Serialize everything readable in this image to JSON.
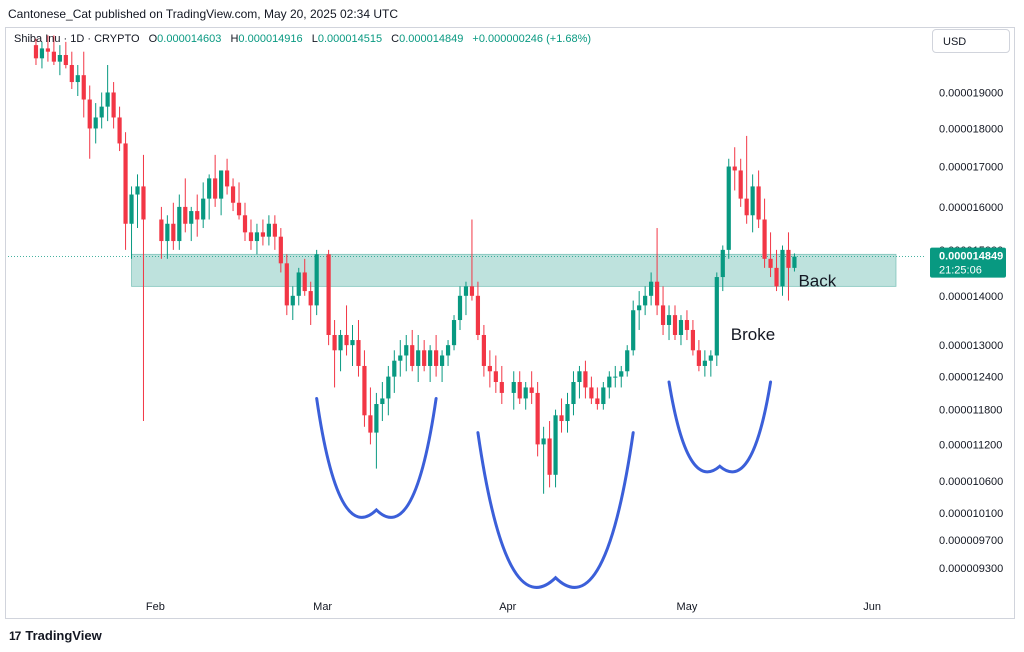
{
  "header": {
    "published": "Cantonese_Cat published on TradingView.com, May 20, 2025 02:34 UTC"
  },
  "legend": {
    "symbol": "Shiba Inu · 1D · CRYPTO",
    "o_label": "O",
    "o_value": "0.000014603",
    "h_label": "H",
    "h_value": "0.000014916",
    "l_label": "L",
    "l_value": "0.000014515",
    "c_label": "C",
    "c_value": "0.000014849",
    "change": "+0.000000246 (+1.68%)"
  },
  "currency_button": "USD",
  "footer": {
    "brand": "TradingView",
    "logo_glyph": "17"
  },
  "price_tag": {
    "price": "0.000014849",
    "countdown": "21:25:06"
  },
  "annotations": {
    "broke": "Broke",
    "back": "Back"
  },
  "colors": {
    "up": "#089981",
    "down": "#f23645",
    "zone": "#a8d8d2",
    "curve": "#3b5fd9",
    "axis_text": "#131722"
  },
  "chart_data": {
    "type": "candlestick",
    "title": "",
    "xlabel": "",
    "ylabel": "",
    "scale": "log",
    "ylim": [
      9e-06,
      2.01e-05
    ],
    "y_ticks": [
      {
        "value": 1.9e-05,
        "label": "0.000019000"
      },
      {
        "value": 1.8e-05,
        "label": "0.000018000"
      },
      {
        "value": 1.7e-05,
        "label": "0.000017000"
      },
      {
        "value": 1.6e-05,
        "label": "0.000016000"
      },
      {
        "value": 1.5e-05,
        "label": "0.000015000"
      },
      {
        "value": 1.4e-05,
        "label": "0.000014000"
      },
      {
        "value": 1.3e-05,
        "label": "0.000013000"
      },
      {
        "value": 1.24e-05,
        "label": "0.000012400"
      },
      {
        "value": 1.18e-05,
        "label": "0.000011800"
      },
      {
        "value": 1.12e-05,
        "label": "0.000011200"
      },
      {
        "value": 1.06e-05,
        "label": "0.000010600"
      },
      {
        "value": 1.01e-05,
        "label": "0.000010100"
      },
      {
        "value": 9.7e-06,
        "label": "0.000009700"
      },
      {
        "value": 9.3e-06,
        "label": "0.000009300"
      }
    ],
    "x_ticks": [
      {
        "date": "2025-02-01",
        "label": "Feb"
      },
      {
        "date": "2025-03-01",
        "label": "Mar"
      },
      {
        "date": "2025-04-01",
        "label": "Apr"
      },
      {
        "date": "2025-05-01",
        "label": "May"
      },
      {
        "date": "2025-06-01",
        "label": "Jun"
      }
    ],
    "x_range": [
      "2025-01-11",
      "2025-06-04"
    ],
    "last_price": 1.4849e-05,
    "zone": {
      "from": "2025-01-28",
      "to": "2025-06-05",
      "low": 1.42e-05,
      "high": 1.49e-05
    },
    "curves": [
      {
        "from": "2025-02-28",
        "to": "2025-03-20",
        "top": 1.2e-05,
        "bottom": 1.06e-05
      },
      {
        "from": "2025-03-27",
        "to": "2025-04-22",
        "top": 1.14e-05,
        "bottom": 9.7e-06
      },
      {
        "from": "2025-04-28",
        "to": "2025-05-15",
        "top": 1.23e-05,
        "bottom": 1.12e-05
      }
    ],
    "candles": [
      {
        "date": "2025-01-12",
        "o": 20.4,
        "h": 20.6,
        "l": 19.8,
        "c": 20.0
      },
      {
        "date": "2025-01-13",
        "o": 20.0,
        "h": 20.5,
        "l": 19.7,
        "c": 20.3
      },
      {
        "date": "2025-01-14",
        "o": 20.3,
        "h": 20.7,
        "l": 19.9,
        "c": 20.2
      },
      {
        "date": "2025-01-15",
        "o": 20.2,
        "h": 20.7,
        "l": 19.8,
        "c": 19.9
      },
      {
        "date": "2025-01-16",
        "o": 19.9,
        "h": 20.4,
        "l": 19.5,
        "c": 20.1
      },
      {
        "date": "2025-01-17",
        "o": 20.1,
        "h": 20.5,
        "l": 19.7,
        "c": 19.8
      },
      {
        "date": "2025-01-18",
        "o": 19.8,
        "h": 20.2,
        "l": 19.1,
        "c": 19.3
      },
      {
        "date": "2025-01-19",
        "o": 19.3,
        "h": 19.8,
        "l": 18.9,
        "c": 19.5
      },
      {
        "date": "2025-01-20",
        "o": 19.5,
        "h": 20.2,
        "l": 18.3,
        "c": 18.8
      },
      {
        "date": "2025-01-21",
        "o": 18.8,
        "h": 19.2,
        "l": 17.2,
        "c": 18.0
      },
      {
        "date": "2025-01-22",
        "o": 18.0,
        "h": 18.7,
        "l": 17.6,
        "c": 18.3
      },
      {
        "date": "2025-01-23",
        "o": 18.3,
        "h": 19.0,
        "l": 18.0,
        "c": 18.6
      },
      {
        "date": "2025-01-24",
        "o": 18.6,
        "h": 19.8,
        "l": 18.2,
        "c": 19.0
      },
      {
        "date": "2025-01-25",
        "o": 19.0,
        "h": 19.3,
        "l": 18.0,
        "c": 18.3
      },
      {
        "date": "2025-01-26",
        "o": 18.3,
        "h": 18.6,
        "l": 17.4,
        "c": 17.6
      },
      {
        "date": "2025-01-27",
        "o": 17.6,
        "h": 17.9,
        "l": 15.0,
        "c": 15.6
      },
      {
        "date": "2025-01-28",
        "o": 15.6,
        "h": 16.5,
        "l": 14.8,
        "c": 16.3
      },
      {
        "date": "2025-01-29",
        "o": 16.3,
        "h": 16.8,
        "l": 15.5,
        "c": 16.5
      },
      {
        "date": "2025-01-30",
        "o": 16.5,
        "h": 17.3,
        "l": 11.6,
        "c": 15.7
      },
      {
        "date": "2025-02-02",
        "o": 15.7,
        "h": 16.0,
        "l": 14.8,
        "c": 15.2
      },
      {
        "date": "2025-02-03",
        "o": 15.2,
        "h": 15.8,
        "l": 14.8,
        "c": 15.6
      },
      {
        "date": "2025-02-04",
        "o": 15.6,
        "h": 16.1,
        "l": 15.0,
        "c": 15.2
      },
      {
        "date": "2025-02-05",
        "o": 15.2,
        "h": 16.3,
        "l": 15.0,
        "c": 16.0
      },
      {
        "date": "2025-02-06",
        "o": 16.0,
        "h": 16.7,
        "l": 15.4,
        "c": 15.6
      },
      {
        "date": "2025-02-07",
        "o": 15.6,
        "h": 16.0,
        "l": 15.2,
        "c": 15.9
      },
      {
        "date": "2025-02-08",
        "o": 15.9,
        "h": 16.3,
        "l": 15.3,
        "c": 15.7
      },
      {
        "date": "2025-02-09",
        "o": 15.7,
        "h": 16.6,
        "l": 15.5,
        "c": 16.2
      },
      {
        "date": "2025-02-10",
        "o": 16.2,
        "h": 16.8,
        "l": 15.7,
        "c": 16.7
      },
      {
        "date": "2025-02-11",
        "o": 16.7,
        "h": 17.3,
        "l": 16.0,
        "c": 16.2
      },
      {
        "date": "2025-02-12",
        "o": 16.2,
        "h": 16.9,
        "l": 15.8,
        "c": 16.9
      },
      {
        "date": "2025-02-13",
        "o": 16.9,
        "h": 17.2,
        "l": 16.3,
        "c": 16.5
      },
      {
        "date": "2025-02-14",
        "o": 16.5,
        "h": 16.7,
        "l": 15.9,
        "c": 16.1
      },
      {
        "date": "2025-02-15",
        "o": 16.1,
        "h": 16.6,
        "l": 15.7,
        "c": 15.8
      },
      {
        "date": "2025-02-16",
        "o": 15.8,
        "h": 16.1,
        "l": 15.2,
        "c": 15.4
      },
      {
        "date": "2025-02-17",
        "o": 15.4,
        "h": 15.7,
        "l": 15.0,
        "c": 15.2
      },
      {
        "date": "2025-02-18",
        "o": 15.2,
        "h": 15.6,
        "l": 14.9,
        "c": 15.4
      },
      {
        "date": "2025-02-19",
        "o": 15.4,
        "h": 15.7,
        "l": 15.1,
        "c": 15.3
      },
      {
        "date": "2025-02-20",
        "o": 15.3,
        "h": 15.8,
        "l": 15.1,
        "c": 15.6
      },
      {
        "date": "2025-02-21",
        "o": 15.6,
        "h": 15.8,
        "l": 15.0,
        "c": 15.3
      },
      {
        "date": "2025-02-22",
        "o": 15.3,
        "h": 15.5,
        "l": 14.5,
        "c": 14.7
      },
      {
        "date": "2025-02-23",
        "o": 14.7,
        "h": 14.9,
        "l": 13.6,
        "c": 13.8
      },
      {
        "date": "2025-02-24",
        "o": 13.8,
        "h": 14.2,
        "l": 13.5,
        "c": 14.0
      },
      {
        "date": "2025-02-25",
        "o": 14.0,
        "h": 14.6,
        "l": 13.8,
        "c": 14.5
      },
      {
        "date": "2025-02-26",
        "o": 14.5,
        "h": 14.8,
        "l": 14.0,
        "c": 14.1
      },
      {
        "date": "2025-02-27",
        "o": 14.1,
        "h": 14.3,
        "l": 13.4,
        "c": 13.8
      },
      {
        "date": "2025-02-28",
        "o": 13.8,
        "h": 15.0,
        "l": 13.6,
        "c": 14.9
      },
      {
        "date": "2025-03-02",
        "o": 14.9,
        "h": 15.0,
        "l": 13.0,
        "c": 13.2
      },
      {
        "date": "2025-03-03",
        "o": 13.2,
        "h": 13.5,
        "l": 12.2,
        "c": 12.9
      },
      {
        "date": "2025-03-04",
        "o": 12.9,
        "h": 13.3,
        "l": 12.5,
        "c": 13.2
      },
      {
        "date": "2025-03-05",
        "o": 13.2,
        "h": 13.8,
        "l": 12.8,
        "c": 13.0
      },
      {
        "date": "2025-03-06",
        "o": 13.0,
        "h": 13.4,
        "l": 12.6,
        "c": 13.1
      },
      {
        "date": "2025-03-07",
        "o": 13.1,
        "h": 13.5,
        "l": 12.4,
        "c": 12.6
      },
      {
        "date": "2025-03-08",
        "o": 12.6,
        "h": 12.9,
        "l": 11.5,
        "c": 11.7
      },
      {
        "date": "2025-03-09",
        "o": 11.7,
        "h": 12.2,
        "l": 11.2,
        "c": 11.4
      },
      {
        "date": "2025-03-10",
        "o": 11.4,
        "h": 12.1,
        "l": 10.8,
        "c": 11.9
      },
      {
        "date": "2025-03-11",
        "o": 11.9,
        "h": 12.3,
        "l": 11.6,
        "c": 12.0
      },
      {
        "date": "2025-03-12",
        "o": 12.0,
        "h": 12.6,
        "l": 11.7,
        "c": 12.4
      },
      {
        "date": "2025-03-13",
        "o": 12.4,
        "h": 12.9,
        "l": 12.1,
        "c": 12.7
      },
      {
        "date": "2025-03-14",
        "o": 12.7,
        "h": 13.1,
        "l": 12.4,
        "c": 12.8
      },
      {
        "date": "2025-03-15",
        "o": 12.8,
        "h": 13.2,
        "l": 12.5,
        "c": 13.0
      },
      {
        "date": "2025-03-16",
        "o": 13.0,
        "h": 13.3,
        "l": 12.5,
        "c": 12.6
      },
      {
        "date": "2025-03-17",
        "o": 12.6,
        "h": 13.2,
        "l": 12.3,
        "c": 12.9
      },
      {
        "date": "2025-03-18",
        "o": 12.9,
        "h": 13.1,
        "l": 12.5,
        "c": 12.6
      },
      {
        "date": "2025-03-19",
        "o": 12.6,
        "h": 13.0,
        "l": 12.3,
        "c": 12.9
      },
      {
        "date": "2025-03-20",
        "o": 12.9,
        "h": 13.2,
        "l": 12.4,
        "c": 12.6
      },
      {
        "date": "2025-03-21",
        "o": 12.6,
        "h": 12.9,
        "l": 12.3,
        "c": 12.8
      },
      {
        "date": "2025-03-22",
        "o": 12.8,
        "h": 13.1,
        "l": 12.6,
        "c": 13.0
      },
      {
        "date": "2025-03-23",
        "o": 13.0,
        "h": 13.6,
        "l": 12.9,
        "c": 13.5
      },
      {
        "date": "2025-03-24",
        "o": 13.5,
        "h": 14.2,
        "l": 13.3,
        "c": 14.0
      },
      {
        "date": "2025-03-25",
        "o": 14.0,
        "h": 14.3,
        "l": 13.6,
        "c": 14.2
      },
      {
        "date": "2025-03-26",
        "o": 14.2,
        "h": 15.7,
        "l": 13.9,
        "c": 14.0
      },
      {
        "date": "2025-03-27",
        "o": 14.0,
        "h": 14.3,
        "l": 13.1,
        "c": 13.2
      },
      {
        "date": "2025-03-28",
        "o": 13.2,
        "h": 13.4,
        "l": 12.4,
        "c": 12.6
      },
      {
        "date": "2025-03-29",
        "o": 12.6,
        "h": 12.9,
        "l": 12.2,
        "c": 12.5
      },
      {
        "date": "2025-03-30",
        "o": 12.5,
        "h": 12.8,
        "l": 12.1,
        "c": 12.3
      },
      {
        "date": "2025-03-31",
        "o": 12.3,
        "h": 12.6,
        "l": 11.9,
        "c": 12.1
      },
      {
        "date": "2025-04-02",
        "o": 12.1,
        "h": 12.5,
        "l": 11.8,
        "c": 12.3
      },
      {
        "date": "2025-04-03",
        "o": 12.3,
        "h": 12.5,
        "l": 11.9,
        "c": 12.0
      },
      {
        "date": "2025-04-04",
        "o": 12.0,
        "h": 12.3,
        "l": 11.8,
        "c": 12.2
      },
      {
        "date": "2025-04-05",
        "o": 12.2,
        "h": 12.5,
        "l": 11.9,
        "c": 12.1
      },
      {
        "date": "2025-04-06",
        "o": 12.1,
        "h": 12.3,
        "l": 11.0,
        "c": 11.2
      },
      {
        "date": "2025-04-07",
        "o": 11.2,
        "h": 11.5,
        "l": 10.4,
        "c": 11.3
      },
      {
        "date": "2025-04-08",
        "o": 11.3,
        "h": 11.6,
        "l": 10.5,
        "c": 10.7
      },
      {
        "date": "2025-04-09",
        "o": 10.7,
        "h": 11.8,
        "l": 10.5,
        "c": 11.7
      },
      {
        "date": "2025-04-10",
        "o": 11.7,
        "h": 12.0,
        "l": 11.4,
        "c": 11.6
      },
      {
        "date": "2025-04-11",
        "o": 11.6,
        "h": 12.1,
        "l": 11.4,
        "c": 11.9
      },
      {
        "date": "2025-04-12",
        "o": 11.9,
        "h": 12.5,
        "l": 11.7,
        "c": 12.3
      },
      {
        "date": "2025-04-13",
        "o": 12.3,
        "h": 12.6,
        "l": 12.0,
        "c": 12.5
      },
      {
        "date": "2025-04-14",
        "o": 12.5,
        "h": 12.7,
        "l": 12.0,
        "c": 12.2
      },
      {
        "date": "2025-04-15",
        "o": 12.2,
        "h": 12.4,
        "l": 11.9,
        "c": 12.0
      },
      {
        "date": "2025-04-16",
        "o": 12.0,
        "h": 12.2,
        "l": 11.8,
        "c": 11.9
      },
      {
        "date": "2025-04-17",
        "o": 11.9,
        "h": 12.3,
        "l": 11.8,
        "c": 12.2
      },
      {
        "date": "2025-04-18",
        "o": 12.2,
        "h": 12.5,
        "l": 12.0,
        "c": 12.4
      },
      {
        "date": "2025-04-19",
        "o": 12.4,
        "h": 12.6,
        "l": 12.2,
        "c": 12.4
      },
      {
        "date": "2025-04-20",
        "o": 12.4,
        "h": 12.6,
        "l": 12.2,
        "c": 12.5
      },
      {
        "date": "2025-04-21",
        "o": 12.5,
        "h": 13.0,
        "l": 12.4,
        "c": 12.9
      },
      {
        "date": "2025-04-22",
        "o": 12.9,
        "h": 13.9,
        "l": 12.8,
        "c": 13.7
      },
      {
        "date": "2025-04-23",
        "o": 13.7,
        "h": 14.1,
        "l": 13.3,
        "c": 13.8
      },
      {
        "date": "2025-04-24",
        "o": 13.8,
        "h": 14.2,
        "l": 13.6,
        "c": 14.0
      },
      {
        "date": "2025-04-25",
        "o": 14.0,
        "h": 14.5,
        "l": 13.8,
        "c": 14.3
      },
      {
        "date": "2025-04-26",
        "o": 14.3,
        "h": 15.5,
        "l": 13.6,
        "c": 13.8
      },
      {
        "date": "2025-04-27",
        "o": 13.8,
        "h": 14.2,
        "l": 13.2,
        "c": 13.4
      },
      {
        "date": "2025-04-28",
        "o": 13.4,
        "h": 13.8,
        "l": 13.1,
        "c": 13.6
      },
      {
        "date": "2025-04-29",
        "o": 13.6,
        "h": 13.8,
        "l": 13.1,
        "c": 13.2
      },
      {
        "date": "2025-04-30",
        "o": 13.2,
        "h": 13.6,
        "l": 13.0,
        "c": 13.5
      },
      {
        "date": "2025-05-01",
        "o": 13.5,
        "h": 13.7,
        "l": 13.1,
        "c": 13.3
      },
      {
        "date": "2025-05-02",
        "o": 13.3,
        "h": 13.5,
        "l": 12.8,
        "c": 12.9
      },
      {
        "date": "2025-05-03",
        "o": 12.9,
        "h": 13.1,
        "l": 12.5,
        "c": 12.6
      },
      {
        "date": "2025-05-04",
        "o": 12.6,
        "h": 12.9,
        "l": 12.4,
        "c": 12.7
      },
      {
        "date": "2025-05-05",
        "o": 12.7,
        "h": 12.9,
        "l": 12.4,
        "c": 12.8
      },
      {
        "date": "2025-05-06",
        "o": 12.8,
        "h": 14.5,
        "l": 12.6,
        "c": 14.4
      },
      {
        "date": "2025-05-07",
        "o": 14.4,
        "h": 15.1,
        "l": 14.1,
        "c": 15.0
      },
      {
        "date": "2025-05-08",
        "o": 15.0,
        "h": 17.2,
        "l": 14.8,
        "c": 17.0
      },
      {
        "date": "2025-05-09",
        "o": 17.0,
        "h": 17.5,
        "l": 16.4,
        "c": 16.9
      },
      {
        "date": "2025-05-10",
        "o": 16.9,
        "h": 17.2,
        "l": 16.0,
        "c": 16.2
      },
      {
        "date": "2025-05-11",
        "o": 16.2,
        "h": 17.8,
        "l": 15.6,
        "c": 15.8
      },
      {
        "date": "2025-05-12",
        "o": 15.8,
        "h": 16.8,
        "l": 15.4,
        "c": 16.5
      },
      {
        "date": "2025-05-13",
        "o": 16.5,
        "h": 16.9,
        "l": 15.5,
        "c": 15.7
      },
      {
        "date": "2025-05-14",
        "o": 15.7,
        "h": 16.2,
        "l": 14.6,
        "c": 14.8
      },
      {
        "date": "2025-05-15",
        "o": 14.8,
        "h": 15.4,
        "l": 14.4,
        "c": 14.6
      },
      {
        "date": "2025-05-16",
        "o": 14.6,
        "h": 15.0,
        "l": 14.1,
        "c": 14.2
      },
      {
        "date": "2025-05-17",
        "o": 14.2,
        "h": 15.1,
        "l": 14.0,
        "c": 15.0
      },
      {
        "date": "2025-05-18",
        "o": 15.0,
        "h": 15.4,
        "l": 13.9,
        "c": 14.6
      },
      {
        "date": "2025-05-19",
        "o": 14.6,
        "h": 14.92,
        "l": 14.52,
        "c": 14.85
      }
    ]
  }
}
